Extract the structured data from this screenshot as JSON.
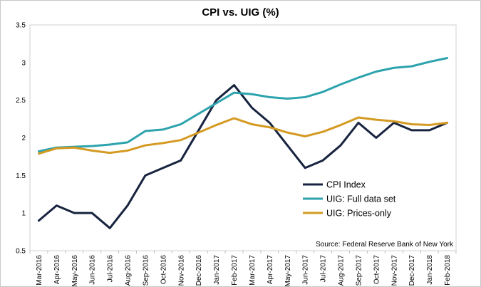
{
  "chart_data": {
    "type": "line",
    "title": "CPI vs. UIG (%)",
    "xlabel": "",
    "ylabel": "",
    "categories": [
      "Mar-2016",
      "Apr-2016",
      "May-2016",
      "Jun-2016",
      "Jul-2016",
      "Aug-2016",
      "Sep-2016",
      "Oct-2016",
      "Nov-2016",
      "Dec-2016",
      "Jan-2017",
      "Feb-2017",
      "Mar-2017",
      "Apr-2017",
      "May-2017",
      "Jun-2017",
      "Jul-2017",
      "Aug-2017",
      "Sep-2017",
      "Oct-2017",
      "Nov-2017",
      "Dec-2017",
      "Jan-2018",
      "Feb-2018"
    ],
    "ylim": [
      0.5,
      3.5
    ],
    "yticks": [
      "0.5",
      "1",
      "1.5",
      "2",
      "2.5",
      "3",
      "3.5"
    ],
    "grid": false,
    "legend_position": "bottom-right",
    "series": [
      {
        "name": "CPI Index",
        "color": "#17233f",
        "values": [
          0.9,
          1.1,
          1.0,
          1.0,
          0.8,
          1.1,
          1.5,
          1.6,
          1.7,
          2.1,
          2.5,
          2.7,
          2.4,
          2.2,
          1.9,
          1.6,
          1.7,
          1.9,
          2.2,
          2.0,
          2.2,
          2.1,
          2.1,
          2.2
        ]
      },
      {
        "name": "UIG: Full data set",
        "color": "#2da3ad",
        "values": [
          1.82,
          1.87,
          1.88,
          1.89,
          1.91,
          1.94,
          2.09,
          2.11,
          2.18,
          2.32,
          2.46,
          2.6,
          2.58,
          2.54,
          2.52,
          2.54,
          2.61,
          2.71,
          2.8,
          2.88,
          2.93,
          2.95,
          3.01,
          3.06
        ]
      },
      {
        "name": "UIG: Prices-only",
        "color": "#d49a22",
        "values": [
          1.79,
          1.86,
          1.87,
          1.83,
          1.8,
          1.83,
          1.9,
          1.93,
          1.97,
          2.07,
          2.17,
          2.26,
          2.18,
          2.14,
          2.07,
          2.02,
          2.08,
          2.17,
          2.27,
          2.24,
          2.22,
          2.18,
          2.17,
          2.2
        ]
      }
    ],
    "annotations": [
      "Source: Federal Reserve Bank of New York"
    ]
  }
}
